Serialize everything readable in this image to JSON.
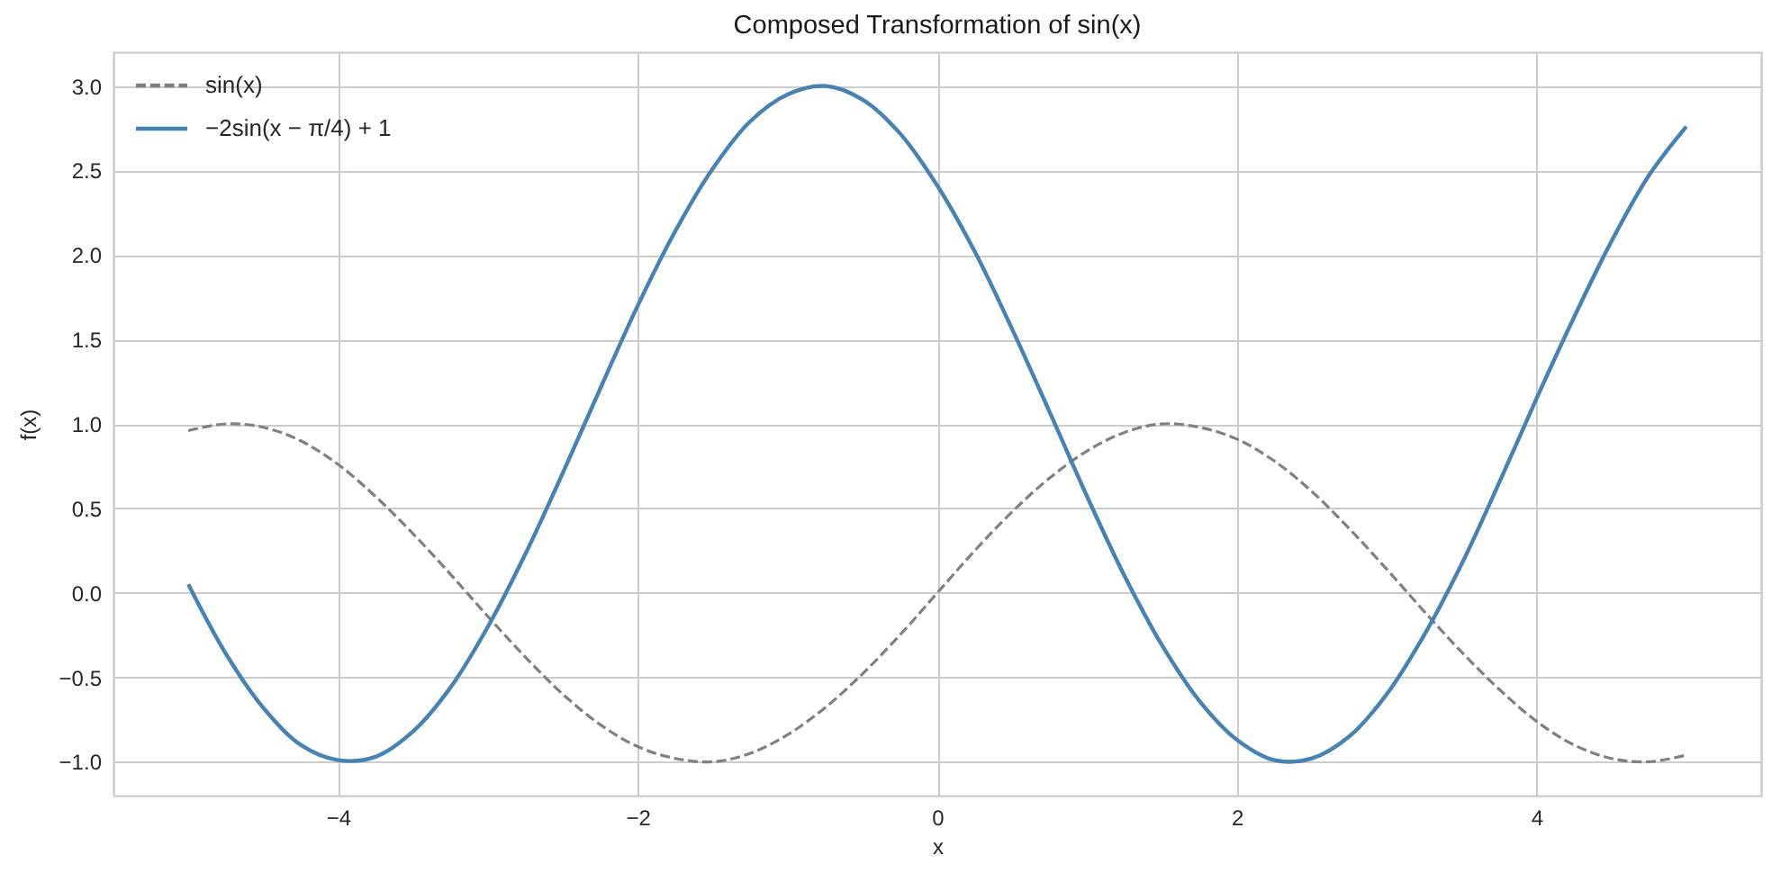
{
  "chart_data": {
    "type": "line",
    "title": "Composed Transformation of sin(x)",
    "xlabel": "x",
    "ylabel": "f(x)",
    "x": [
      -5,
      -4.75,
      -4.5,
      -4.25,
      -4,
      -3.75,
      -3.5,
      -3.25,
      -3,
      -2.75,
      -2.5,
      -2.25,
      -2,
      -1.75,
      -1.5,
      -1.25,
      -1,
      -0.75,
      -0.5,
      -0.25,
      0,
      0.25,
      0.5,
      0.75,
      1,
      1.25,
      1.5,
      1.75,
      2,
      2.25,
      2.5,
      2.75,
      3,
      3.25,
      3.5,
      3.75,
      4,
      4.25,
      4.5,
      4.75,
      5
    ],
    "series": [
      {
        "name": "sin(x)",
        "color": "#808080",
        "line_style": "dashed",
        "values": [
          0.96,
          1.0,
          0.98,
          0.9,
          0.76,
          0.57,
          0.35,
          0.11,
          -0.14,
          -0.38,
          -0.6,
          -0.78,
          -0.91,
          -0.98,
          -1.0,
          -0.95,
          -0.84,
          -0.68,
          -0.48,
          -0.25,
          0,
          0.25,
          0.48,
          0.68,
          0.84,
          0.95,
          1.0,
          0.98,
          0.91,
          0.78,
          0.6,
          0.38,
          0.14,
          -0.11,
          -0.35,
          -0.57,
          -0.76,
          -0.9,
          -0.98,
          -1.0,
          -0.96
        ]
      },
      {
        "name": "−2sin(x − π/4) + 1",
        "color": "#4682b4",
        "line_style": "solid",
        "values": [
          0.05,
          -0.36,
          -0.68,
          -0.9,
          -0.99,
          -0.97,
          -0.82,
          -0.56,
          -0.2,
          0.23,
          0.71,
          1.21,
          1.7,
          2.14,
          2.51,
          2.79,
          2.95,
          3.0,
          2.92,
          2.72,
          2.41,
          2.02,
          1.56,
          1.07,
          0.57,
          0.1,
          -0.31,
          -0.64,
          -0.87,
          -0.99,
          -0.98,
          -0.85,
          -0.6,
          -0.25,
          0.17,
          0.65,
          1.15,
          1.63,
          2.08,
          2.47,
          2.76
        ]
      }
    ],
    "xlim": [
      -5.5,
      5.5
    ],
    "xticks": [
      {
        "value": -4,
        "label": "−4"
      },
      {
        "value": -2,
        "label": "−2"
      },
      0,
      2,
      4
    ],
    "ylim": [
      -1.2,
      3.2
    ],
    "yticks": [
      {
        "value": -1,
        "label": "−1.0"
      },
      {
        "value": -0.5,
        "label": "−0.5"
      },
      {
        "value": 0,
        "label": "0.0"
      },
      0.5,
      {
        "value": 1,
        "label": "1.0"
      },
      1.5,
      {
        "value": 2,
        "label": "2.0"
      },
      2.5,
      {
        "value": 3,
        "label": "3.0"
      }
    ],
    "grid": true,
    "legend": "top left"
  }
}
